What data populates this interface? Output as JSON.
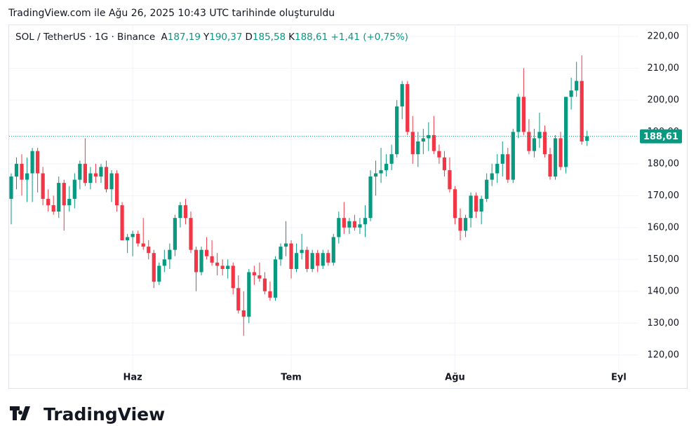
{
  "page_title": "TradingView.com ile Ağu 26, 2025 10:43 UTC tarihinde oluşturuldu",
  "header": {
    "symbol": "SOL / TetherUS · 1G · Binance",
    "ohlc_letters": [
      "A",
      "Y",
      "D",
      "K"
    ],
    "ohlc_values": [
      187.19,
      190.37,
      185.58,
      188.61
    ],
    "ohlc_value_labels": [
      "187,19",
      "190,37",
      "185,58",
      "188,61"
    ],
    "change": "+1,41 (+0,75%)"
  },
  "logo": "TradingView",
  "chart_data": {
    "type": "candlestick",
    "up_color": "#089981",
    "down_color": "#f23645",
    "grid": true,
    "ylim": [
      116,
      223.7
    ],
    "yticks": [
      {
        "value": 120,
        "label": "120,00"
      },
      {
        "value": 130,
        "label": "130,00"
      },
      {
        "value": 140,
        "label": "140,00"
      },
      {
        "value": 150,
        "label": "150,00"
      },
      {
        "value": 160,
        "label": "160,00"
      },
      {
        "value": 170,
        "label": "170,00"
      },
      {
        "value": 180,
        "label": "180,00"
      },
      {
        "value": 190,
        "label": "190,00"
      },
      {
        "value": 200,
        "label": "200,00"
      },
      {
        "value": 210,
        "label": "210,00"
      },
      {
        "value": 220,
        "label": "220,00"
      }
    ],
    "last_price": 188.61,
    "last_price_label": "188,61",
    "categories": [
      null,
      null,
      null,
      null,
      null,
      null,
      null,
      null,
      null,
      null,
      null,
      null,
      null,
      null,
      null,
      null,
      null,
      null,
      null,
      null,
      null,
      null,
      null,
      "Haz",
      null,
      null,
      null,
      null,
      null,
      null,
      null,
      null,
      null,
      null,
      null,
      null,
      null,
      null,
      null,
      null,
      null,
      null,
      null,
      null,
      null,
      null,
      null,
      null,
      null,
      null,
      null,
      null,
      null,
      "Tem",
      null,
      null,
      null,
      null,
      null,
      null,
      null,
      null,
      null,
      null,
      null,
      null,
      null,
      null,
      null,
      null,
      null,
      null,
      null,
      null,
      null,
      null,
      null,
      null,
      null,
      null,
      null,
      null,
      null,
      null,
      "Ağu",
      null,
      null,
      null,
      null,
      null,
      null,
      null,
      null,
      null,
      null,
      null,
      null,
      null,
      null,
      null,
      null,
      null,
      null,
      null,
      null,
      null,
      null,
      null,
      null,
      null,
      null,
      null,
      null,
      null,
      null,
      "Eyl"
    ],
    "open": [
      169,
      176,
      180,
      175,
      177,
      184,
      177,
      169,
      167,
      165,
      174,
      167,
      169,
      175,
      180,
      174,
      177,
      176,
      179,
      172,
      177,
      167,
      156,
      157,
      158,
      155,
      154,
      152,
      143,
      148,
      150,
      153,
      163,
      167,
      163,
      153,
      146,
      153,
      151,
      149,
      148,
      147,
      148,
      141,
      134,
      132,
      146,
      145,
      144,
      140,
      138,
      150,
      154,
      155,
      147,
      152,
      153,
      147,
      152,
      148,
      152,
      149,
      157,
      163,
      160,
      162,
      160,
      161,
      163,
      176,
      177,
      178,
      180,
      183,
      198,
      205,
      190,
      183,
      187,
      188,
      189,
      184,
      182,
      178,
      172,
      163,
      159,
      163,
      170,
      165,
      169,
      175,
      177,
      180,
      183,
      175,
      190,
      201,
      190,
      184,
      188,
      190,
      183,
      176,
      188,
      179,
      201,
      203,
      206,
      187.19,
      null,
      null,
      null,
      null,
      null,
      null
    ],
    "high": [
      177,
      182,
      183,
      182,
      185,
      185,
      179,
      172,
      170,
      176,
      175,
      173,
      177,
      181,
      188,
      179,
      180,
      180,
      181,
      178,
      178,
      168,
      158,
      159,
      159,
      163,
      156,
      153,
      149,
      153,
      155,
      164,
      168,
      169,
      165,
      154,
      154,
      157,
      156,
      152,
      150,
      150,
      149,
      145,
      140,
      147,
      148,
      149,
      146,
      143,
      151,
      155,
      162,
      156,
      155,
      158,
      154,
      153,
      153,
      153,
      153,
      158,
      165,
      168,
      163,
      164,
      163,
      167,
      178,
      181,
      185,
      183,
      186,
      200,
      206,
      206,
      195,
      190,
      191,
      193,
      195,
      186,
      184,
      182,
      173,
      166,
      164,
      171,
      171,
      170,
      177,
      180,
      183,
      187,
      185,
      191,
      202,
      210,
      194,
      191,
      196,
      192,
      185,
      189,
      190,
      201,
      207,
      212,
      214,
      190.37,
      null,
      null,
      null,
      null,
      null,
      null
    ],
    "low": [
      161,
      172,
      170,
      168,
      168,
      171,
      167,
      165,
      164,
      163,
      159,
      165,
      166,
      172,
      173,
      172,
      174,
      174,
      171,
      168,
      165,
      156,
      152,
      151,
      154,
      153,
      150,
      141,
      142,
      146,
      147,
      151,
      160,
      161,
      152,
      140,
      145,
      150,
      148,
      145,
      145,
      144,
      139,
      133,
      126,
      130,
      142,
      143,
      139,
      137,
      137,
      148,
      151,
      144,
      146,
      150,
      146,
      146,
      146,
      147,
      148,
      148,
      155,
      158,
      158,
      159,
      158,
      157,
      162,
      170,
      174,
      176,
      178,
      182,
      194,
      189,
      180,
      179,
      183,
      184,
      183,
      180,
      176,
      171,
      161,
      156,
      157,
      160,
      163,
      161,
      168,
      173,
      174,
      176,
      174,
      174,
      188,
      189,
      183,
      182,
      185,
      182,
      175,
      175,
      178,
      177,
      197,
      201,
      186,
      185.58,
      null,
      null,
      null,
      null,
      null,
      null
    ],
    "close": [
      176,
      180,
      175,
      177,
      184,
      177,
      169,
      167,
      165,
      174,
      167,
      169,
      175,
      180,
      174,
      177,
      176,
      179,
      172,
      177,
      167,
      156,
      157,
      158,
      155,
      154,
      152,
      143,
      148,
      150,
      153,
      163,
      167,
      163,
      153,
      146,
      153,
      151,
      149,
      148,
      147,
      148,
      141,
      134,
      132,
      146,
      145,
      144,
      140,
      138,
      150,
      154,
      155,
      147,
      152,
      153,
      147,
      152,
      148,
      152,
      149,
      157,
      163,
      160,
      162,
      160,
      161,
      163,
      176,
      177,
      178,
      180,
      183,
      198,
      205,
      190,
      183,
      187,
      188,
      189,
      184,
      182,
      178,
      172,
      163,
      159,
      163,
      170,
      165,
      169,
      175,
      177,
      180,
      183,
      175,
      190,
      201,
      190,
      184,
      188,
      190,
      183,
      176,
      188,
      179,
      201,
      203,
      206,
      187,
      188.61,
      null,
      null,
      null,
      null,
      null,
      null
    ]
  }
}
